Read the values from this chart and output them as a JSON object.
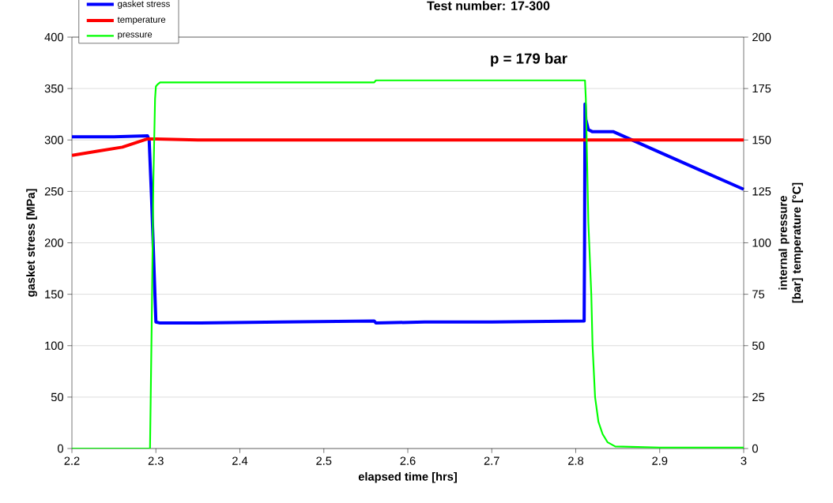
{
  "chart_data": {
    "type": "line",
    "title": "Test number: 17-300",
    "xlabel": "elapsed time [hrs]",
    "ylabel": "gasket stress [MPa]",
    "y2label": "internal pressure [bar] temperature [°C]",
    "annotations": [
      "p = 179 bar"
    ],
    "xlim": [
      2.2,
      3
    ],
    "xticks": [
      2.2,
      2.3,
      2.4,
      2.5,
      2.6,
      2.7,
      2.8,
      2.9,
      3
    ],
    "ylim": [
      0,
      400
    ],
    "yticks": [
      0,
      50,
      100,
      150,
      200,
      250,
      300,
      350,
      400
    ],
    "y2lim": [
      0,
      200
    ],
    "y2ticks": [
      0,
      25,
      50,
      75,
      100,
      125,
      150,
      175,
      200
    ],
    "grid": "y",
    "legend": "top left",
    "series": [
      {
        "name": "gasket stress",
        "color": "#0000ff",
        "x": [
          2.2,
          2.25,
          2.29,
          2.292,
          2.295,
          2.298,
          2.3,
          2.305,
          2.35,
          2.45,
          2.56,
          2.562,
          2.62,
          2.7,
          2.81,
          2.8105,
          2.811,
          2.812,
          2.815,
          2.82,
          2.845,
          2.9,
          2.95,
          3.0
        ],
        "values": [
          303,
          303,
          304,
          300,
          240,
          170,
          123,
          122,
          122,
          123,
          124,
          122,
          123,
          123,
          124,
          200,
          335,
          320,
          310,
          308,
          308,
          288,
          270,
          252
        ]
      },
      {
        "name": "temperature",
        "color": "#ff0000",
        "axis": "y2",
        "x": [
          2.2,
          2.23,
          2.26,
          2.29,
          2.3,
          2.35,
          2.45,
          2.55,
          2.65,
          2.75,
          2.85,
          3.0
        ],
        "values": [
          142.5,
          144.5,
          146.5,
          150.5,
          150.5,
          150,
          150,
          150,
          150,
          150,
          150,
          150
        ]
      },
      {
        "name": "pressure",
        "color": "#00ff00",
        "axis": "y2",
        "x": [
          2.2,
          2.293,
          2.295,
          2.297,
          2.299,
          2.3,
          2.302,
          2.305,
          2.4,
          2.56,
          2.562,
          2.7,
          2.811,
          2.812,
          2.815,
          2.8185,
          2.82,
          2.823,
          2.827,
          2.832,
          2.838,
          2.847,
          2.9,
          3.0
        ],
        "values": [
          0,
          0,
          60,
          130,
          170,
          176,
          177,
          178,
          178,
          178,
          179,
          179,
          179,
          170,
          110,
          75,
          50,
          25,
          13,
          7,
          3,
          1,
          0.5,
          0.5
        ]
      }
    ]
  }
}
